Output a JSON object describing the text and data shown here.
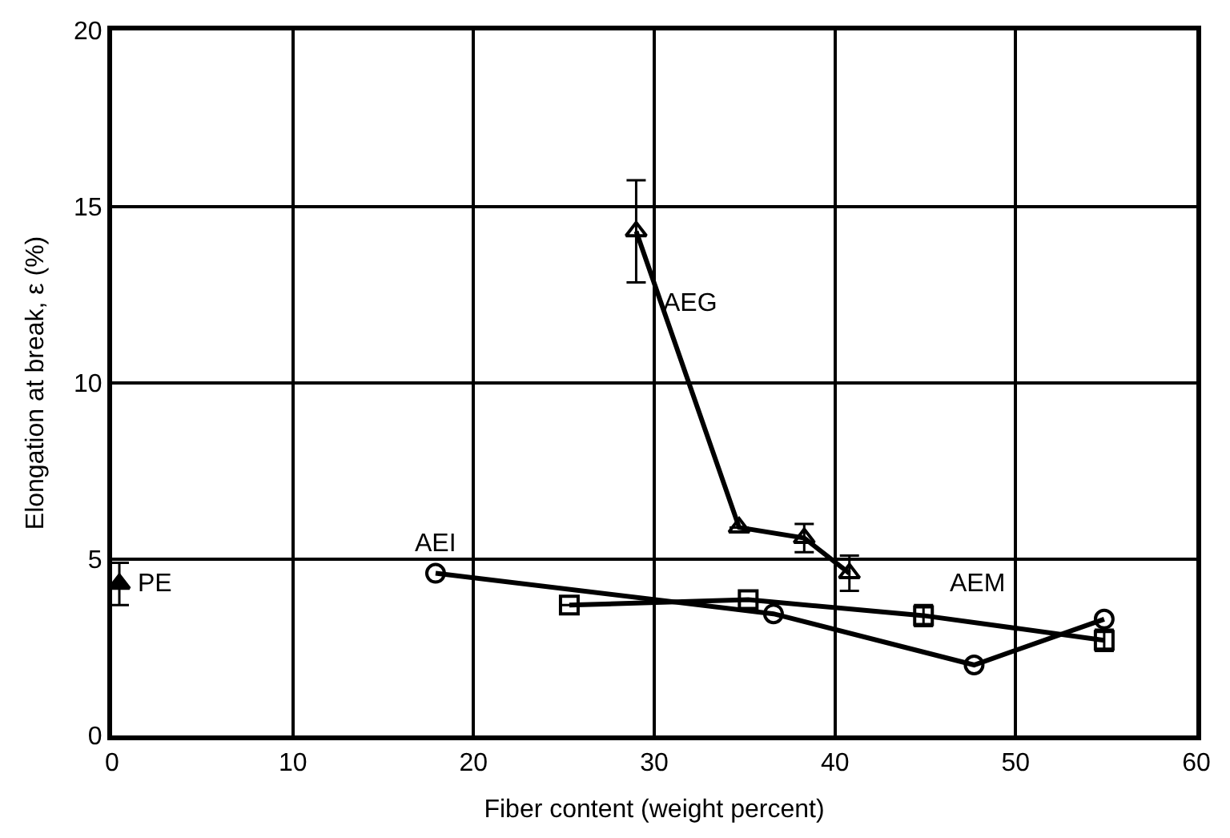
{
  "chart_data": {
    "type": "line",
    "xlabel": "Fiber content (weight percent)",
    "ylabel": "Elongation at break, ε (%)",
    "xlim": [
      0,
      60
    ],
    "ylim": [
      0,
      20
    ],
    "xticks": [
      0,
      10,
      20,
      30,
      40,
      50,
      60
    ],
    "yticks": [
      0,
      5,
      10,
      15,
      20
    ],
    "grid": true,
    "legend": false,
    "line_style": "solid",
    "series": [
      {
        "name": "AEG",
        "color": "#000000",
        "marker": "triangle",
        "x": [
          29.0,
          34.7,
          38.3,
          40.8
        ],
        "values": [
          14.3,
          5.9,
          5.6,
          4.6
        ],
        "errors": [
          1.45,
          null,
          0.4,
          0.5
        ]
      },
      {
        "name": "AEI",
        "color": "#000000",
        "marker": "circle",
        "x": [
          17.9,
          36.6,
          47.7,
          54.9
        ],
        "values": [
          4.6,
          3.45,
          2.0,
          3.3
        ]
      },
      {
        "name": "AEM",
        "color": "#000000",
        "marker": "square",
        "x": [
          25.3,
          35.2,
          44.9,
          54.9
        ],
        "values": [
          3.7,
          3.85,
          3.4,
          2.7
        ],
        "errors": [
          null,
          null,
          0.3,
          0.3
        ]
      },
      {
        "name": "PE",
        "type": "scatter",
        "color": "#000000",
        "marker": "triangle",
        "x": [
          0.4
        ],
        "values": [
          4.3
        ],
        "errors": [
          0.6
        ]
      }
    ]
  }
}
